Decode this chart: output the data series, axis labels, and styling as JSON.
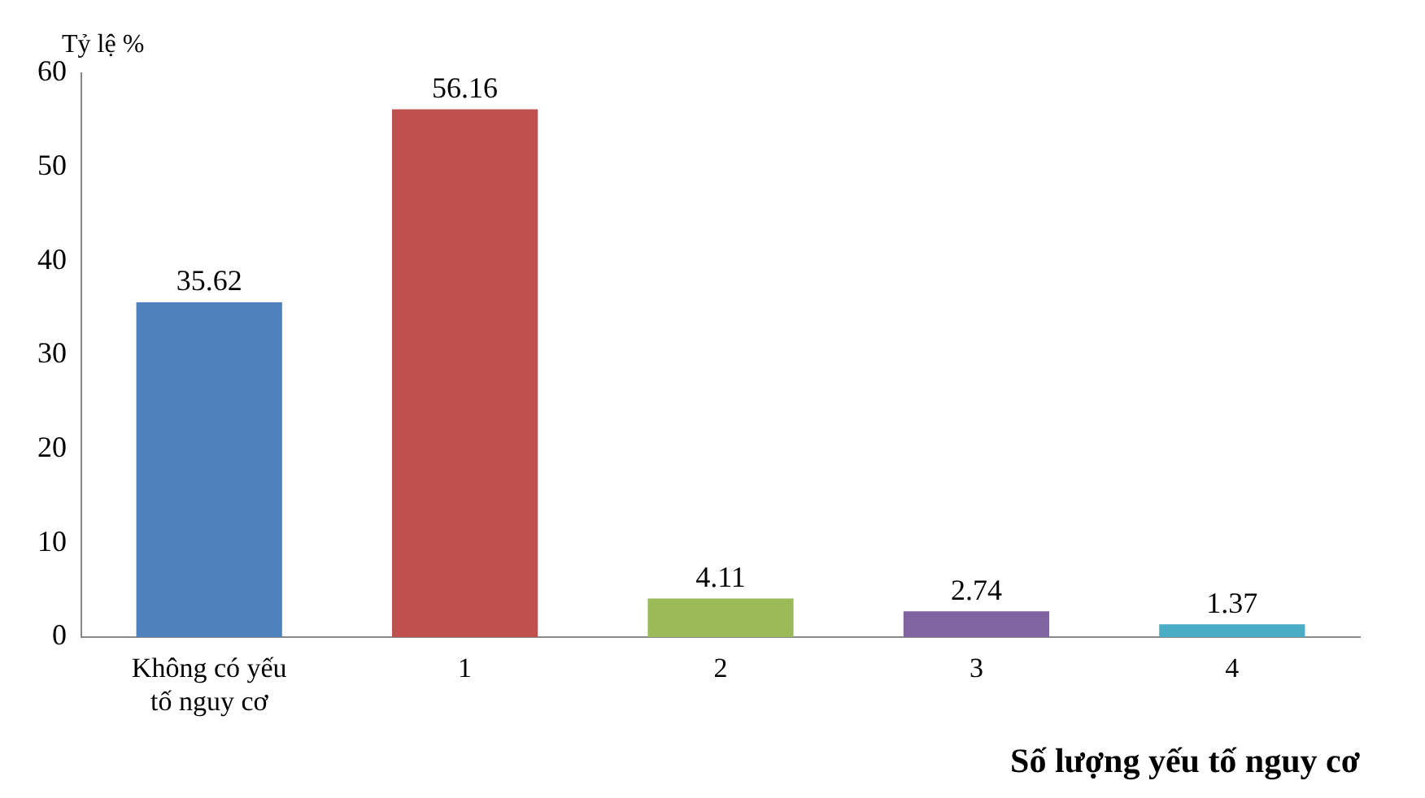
{
  "chart_data": {
    "type": "bar",
    "ylabel": "Tỷ lệ %",
    "xlabel": "Số lượng yếu tố nguy cơ",
    "categories": [
      "Không có yếu tố nguy cơ",
      "1",
      "2",
      "3",
      "4"
    ],
    "values": [
      35.62,
      56.16,
      4.11,
      2.74,
      1.37
    ],
    "colors": [
      "#4f81bd",
      "#c0504d",
      "#9bbb59",
      "#8064a2",
      "#4bacc6"
    ],
    "ylim": [
      0,
      60
    ],
    "yticks": [
      0,
      10,
      20,
      30,
      40,
      50,
      60
    ],
    "grid": false,
    "legend": false,
    "data_labels": true
  }
}
